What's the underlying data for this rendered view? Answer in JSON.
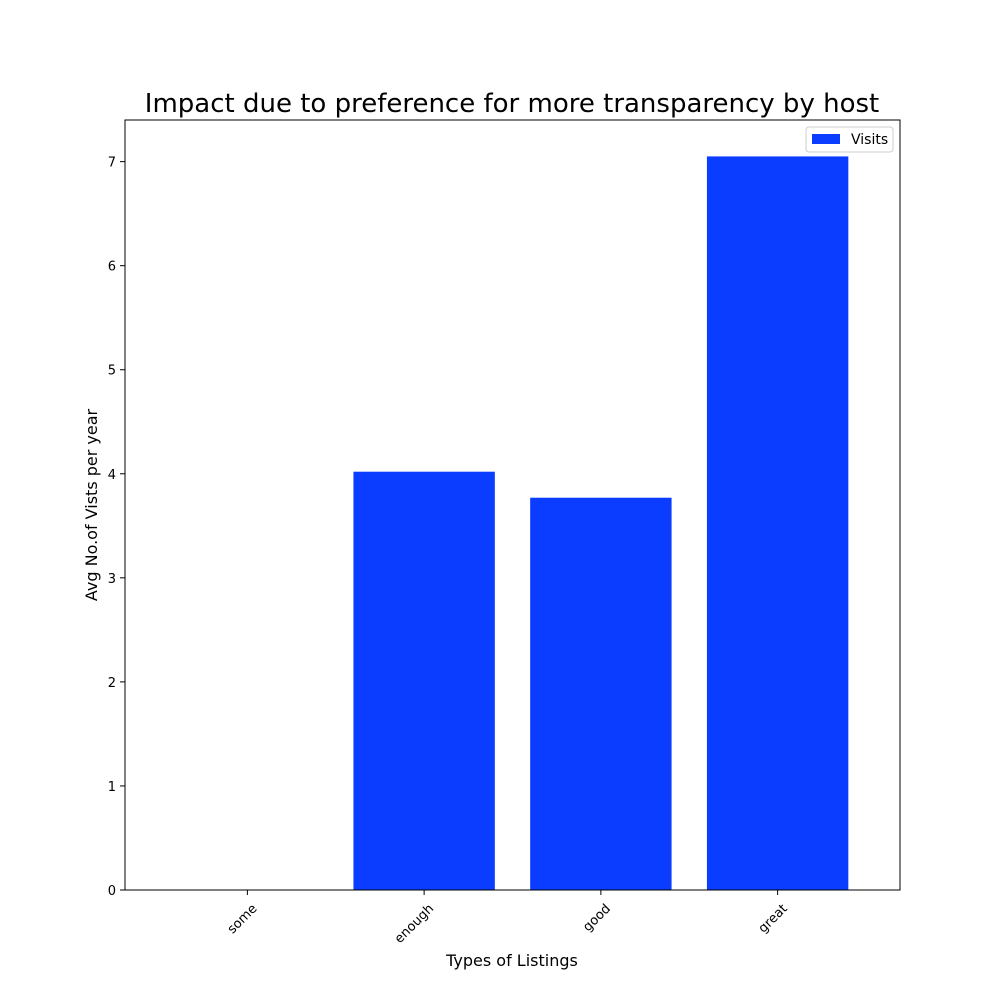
{
  "chart_data": {
    "type": "bar",
    "title": "Impact due to preference for more transparency by host",
    "xlabel": "Types of Listings",
    "ylabel": "Avg No.of Vists per year",
    "categories": [
      "some",
      "enough",
      "good",
      "great"
    ],
    "series": [
      {
        "name": "Visits",
        "values": [
          0,
          4.02,
          3.77,
          7.05
        ],
        "color": "#0a3dff"
      }
    ],
    "ylim": [
      0,
      7.4
    ],
    "yticks": [
      0,
      1,
      2,
      3,
      4,
      5,
      6,
      7
    ],
    "x_tick_rotation": 45,
    "legend_position": "top-right",
    "grid": false
  }
}
